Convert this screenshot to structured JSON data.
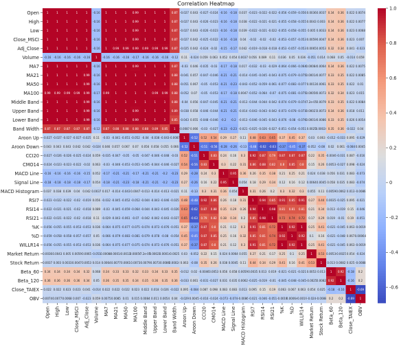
{
  "chart_data": {
    "type": "heatmap",
    "title": "Correlation Heatmap",
    "colormap": "coolwarm",
    "value_range": [
      -0.69,
      1
    ],
    "colorbar_ticks": [
      "-0.6",
      "-0.4",
      "-0.2",
      "0",
      "0.2",
      "0.4",
      "0.6",
      "0.8",
      "1.0"
    ],
    "colorbar_tick_values": [
      -0.6,
      -0.4,
      -0.2,
      0,
      0.2,
      0.4,
      0.6,
      0.8,
      1.0
    ],
    "labels": [
      "Open",
      "High",
      "Low",
      "Close_MSCI",
      "Adj_Close",
      "Volume",
      "MA7",
      "MA21",
      "MA50",
      "MA100",
      "Middle Band",
      "Upper Band",
      "Lower Band",
      "Band Width",
      "Aroon Up",
      "Aroon Down",
      "CCI20",
      "CMO14",
      "MACD Line",
      "Signal Line",
      "MACD Histogram",
      "RSI7",
      "RSI14",
      "RSI21",
      "%K",
      "%D",
      "WILLR14",
      "Market Return",
      "Stock Return",
      "Beta_60",
      "Beta_120",
      "Close_TAIEX",
      "OBV"
    ],
    "matrix": [
      [
        1,
        1,
        1,
        1,
        1,
        -0.16,
        1,
        1,
        1,
        0.99,
        1,
        1,
        1,
        0.87,
        -0.027,
        0.043,
        -0.027,
        -0.024,
        -0.16,
        -0.18,
        0.037,
        -0.023,
        -0.022,
        -0.022,
        -0.056,
        -0.059,
        -0.056,
        0.0036,
        0.0037,
        0.34,
        0.36,
        0.022,
        0.0074
      ],
      [
        1,
        1,
        1,
        1,
        1,
        -0.16,
        1,
        1,
        1,
        0.99,
        1,
        1,
        1,
        0.87,
        -0.027,
        0.043,
        -0.026,
        -0.023,
        -0.16,
        -0.18,
        0.038,
        -0.022,
        -0.021,
        -0.021,
        -0.055,
        -0.058,
        -0.055,
        0.0043,
        0.003,
        0.34,
        0.36,
        0.022,
        0.0077
      ],
      [
        1,
        1,
        1,
        1,
        1,
        -0.16,
        1,
        1,
        1,
        0.99,
        1,
        1,
        1,
        0.87,
        -0.027,
        0.043,
        -0.026,
        -0.023,
        -0.16,
        -0.18,
        0.039,
        -0.022,
        -0.021,
        -0.022,
        -0.055,
        -0.058,
        -0.055,
        0.005,
        0.0033,
        0.34,
        0.36,
        0.023,
        0.0068
      ],
      [
        1,
        1,
        1,
        1,
        1,
        -0.16,
        1,
        1,
        1,
        0.99,
        1,
        1,
        1,
        0.87,
        -0.027,
        0.042,
        -0.025,
        -0.022,
        -0.16,
        -0.18,
        0.04,
        -0.02,
        -0.02,
        -0.02,
        -0.053,
        -0.057,
        -0.053,
        0.0059,
        0.0047,
        0.34,
        0.36,
        0.023,
        0.007
      ],
      [
        1,
        1,
        1,
        1,
        1,
        -0.16,
        1,
        0.99,
        0.99,
        0.99,
        0.99,
        0.99,
        0.99,
        0.87,
        -0.025,
        0.042,
        -0.024,
        -0.02,
        -0.15,
        -0.17,
        0.042,
        -0.019,
        -0.018,
        -0.018,
        -0.053,
        -0.057,
        -0.053,
        0.0065,
        0.0053,
        0.32,
        0.34,
        0.041,
        -0.023
      ],
      [
        -0.16,
        -0.16,
        -0.16,
        -0.16,
        -0.16,
        1,
        -0.16,
        -0.16,
        -0.16,
        -0.17,
        -0.16,
        -0.16,
        -0.16,
        -0.12,
        0.11,
        -0.024,
        0.059,
        0.063,
        0.052,
        0.054,
        0.0037,
        0.056,
        0.089,
        0.11,
        0.036,
        0.05,
        0.036,
        -0.051,
        0.014,
        0.068,
        0.05,
        -0.014,
        0.059
      ],
      [
        1,
        1,
        1,
        1,
        1,
        -0.16,
        1,
        1,
        1,
        0.99,
        1,
        1,
        1,
        0.87,
        -0.03,
        0.046,
        -0.035,
        -0.03,
        -0.17,
        -0.18,
        0.017,
        -0.032,
        -0.03,
        -0.029,
        -0.064,
        -0.066,
        -0.064,
        0.00084,
        0.0064,
        0.34,
        0.36,
        0.022,
        0.0075
      ],
      [
        1,
        1,
        1,
        1,
        0.99,
        -0.16,
        1,
        1,
        1,
        1,
        1,
        1,
        1,
        0.88,
        -0.041,
        0.057,
        -0.047,
        -0.046,
        -0.21,
        -0.21,
        -0.014,
        -0.045,
        -0.045,
        -0.043,
        -0.075,
        -0.079,
        -0.075,
        0.00014,
        0.0077,
        0.33,
        0.35,
        0.022,
        0.0085
      ],
      [
        1,
        1,
        1,
        1,
        0.99,
        -0.16,
        1,
        1,
        1,
        1,
        1,
        1,
        1,
        0.88,
        -0.051,
        0.067,
        -0.05,
        -0.053,
        -0.21,
        -0.23,
        -0.043,
        -0.052,
        -0.059,
        -0.061,
        -0.077,
        -0.083,
        -0.077,
        0.0013,
        0.0061,
        0.33,
        0.35,
        0.022,
        0.01
      ],
      [
        0.99,
        0.99,
        0.99,
        0.99,
        0.99,
        -0.17,
        0.99,
        1,
        1,
        1,
        1,
        0.99,
        0.99,
        0.88,
        -0.052,
        0.07,
        -0.05,
        -0.053,
        -0.17,
        -0.18,
        0.0047,
        -0.052,
        -0.064,
        -0.07,
        -0.075,
        -0.081,
        -0.075,
        0.00056,
        0.0073,
        0.32,
        0.34,
        0.023,
        0.015
      ],
      [
        1,
        1,
        1,
        1,
        0.99,
        -0.16,
        1,
        1,
        1,
        1,
        1,
        1,
        1,
        0.88,
        -0.04,
        0.056,
        -0.047,
        -0.045,
        -0.21,
        -0.21,
        -0.013,
        -0.044,
        -0.044,
        -0.042,
        -0.074,
        -0.079,
        -0.074,
        7.2e-05,
        0.0079,
        0.33,
        0.35,
        0.022,
        0.0084
      ],
      [
        1,
        1,
        1,
        1,
        0.99,
        -0.16,
        1,
        1,
        1,
        0.99,
        1,
        1,
        1,
        0.89,
        -0.038,
        0.058,
        -0.046,
        -0.044,
        -0.21,
        -0.21,
        -0.014,
        -0.043,
        -0.043,
        -0.042,
        -0.073,
        -0.078,
        -0.073,
        0.00027,
        0.0073,
        0.34,
        0.36,
        0.018,
        0.011
      ],
      [
        1,
        1,
        1,
        1,
        0.99,
        -0.16,
        1,
        1,
        1,
        0.99,
        1,
        1,
        1,
        0.85,
        -0.043,
        0.055,
        -0.048,
        -0.046,
        -0.2,
        -0.2,
        -0.013,
        -0.046,
        -0.045,
        -0.043,
        -0.076,
        -0.08,
        -0.076,
        0.00014,
        0.0086,
        0.33,
        0.35,
        0.026,
        0.0054
      ],
      [
        0.87,
        0.87,
        0.87,
        0.87,
        0.87,
        -0.12,
        0.87,
        0.88,
        0.88,
        0.88,
        0.88,
        0.89,
        0.85,
        1,
        -0.0087,
        0.066,
        -0.03,
        -0.027,
        -0.23,
        -0.23,
        -0.021,
        -0.025,
        -0.026,
        -0.027,
        -0.051,
        -0.054,
        -0.051,
        0.0025,
        0.00024,
        0.35,
        0.36,
        -0.022,
        0.04
      ],
      [
        -0.027,
        -0.027,
        -0.027,
        -0.027,
        -0.025,
        0.11,
        -0.03,
        -0.041,
        -0.051,
        -0.052,
        -0.04,
        -0.038,
        -0.043,
        -0.0087,
        1,
        -0.52,
        0.52,
        0.54,
        0.29,
        0.27,
        0.11,
        0.48,
        0.63,
        0.65,
        0.37,
        0.45,
        0.37,
        0.03,
        0.063,
        -0.012,
        -0.033,
        0.095,
        -0.029
      ],
      [
        0.043,
        0.043,
        0.043,
        0.042,
        0.042,
        -0.024,
        0.046,
        0.057,
        0.067,
        0.07,
        0.056,
        0.058,
        0.055,
        0.066,
        -0.52,
        1,
        -0.51,
        -0.56,
        -0.28,
        -0.26,
        -0.13,
        -0.48,
        -0.62,
        -0.63,
        -0.37,
        -0.45,
        -0.37,
        -0.052,
        -0.08,
        0.02,
        0.061,
        -0.084,
        0.0045
      ],
      [
        -0.027,
        -0.026,
        -0.026,
        -0.025,
        -0.024,
        0.059,
        -0.035,
        -0.047,
        -0.05,
        -0.05,
        -0.047,
        -0.046,
        -0.048,
        -0.03,
        0.52,
        -0.51,
        1,
        0.83,
        0.24,
        0.16,
        0.3,
        0.92,
        0.87,
        0.79,
        0.87,
        0.87,
        0.87,
        0.22,
        0.35,
        -0.0046,
        -0.031,
        0.087,
        -0.016
      ],
      [
        -0.024,
        -0.023,
        -0.023,
        -0.022,
        -0.02,
        0.063,
        -0.03,
        -0.046,
        -0.053,
        -0.053,
        -0.045,
        -0.044,
        -0.046,
        -0.027,
        0.54,
        -0.56,
        0.83,
        1,
        0.3,
        0.22,
        0.31,
        0.86,
        0.88,
        0.82,
        0.8,
        0.85,
        0.8,
        0.15,
        0.26,
        0.0053,
        -0.027,
        0.098,
        -0.024
      ],
      [
        -0.16,
        -0.16,
        -0.16,
        -0.16,
        -0.15,
        0.052,
        -0.17,
        -0.21,
        -0.21,
        -0.17,
        -0.21,
        -0.21,
        -0.2,
        -0.23,
        0.29,
        -0.28,
        0.24,
        0.3,
        1,
        0.95,
        0.36,
        0.26,
        0.35,
        0.38,
        0.21,
        0.25,
        0.21,
        0.024,
        0.038,
        0.056,
        0.031,
        0.083,
        -0.073
      ],
      [
        -0.18,
        -0.18,
        -0.18,
        -0.18,
        -0.17,
        0.054,
        -0.18,
        -0.21,
        -0.23,
        -0.18,
        -0.21,
        -0.21,
        -0.2,
        -0.23,
        0.27,
        -0.26,
        0.16,
        0.22,
        0.95,
        1,
        0.054,
        0.18,
        0.29,
        0.34,
        0.12,
        0.16,
        0.12,
        0.0064,
        0.0045,
        0.058,
        0.035,
        0.083,
        -0.074
      ],
      [
        0.037,
        0.038,
        0.039,
        0.04,
        0.042,
        0.0037,
        0.017,
        -0.014,
        -0.043,
        0.0047,
        -0.013,
        -0.014,
        -0.013,
        -0.021,
        0.11,
        -0.13,
        0.3,
        0.31,
        0.36,
        0.054,
        1,
        0.31,
        0.26,
        0.2,
        0.3,
        0.32,
        0.3,
        0.055,
        0.11,
        0.0059,
        0.0062,
        0.013,
        -0.0086
      ],
      [
        -0.023,
        -0.022,
        -0.022,
        -0.02,
        -0.019,
        0.056,
        -0.032,
        -0.045,
        -0.052,
        -0.052,
        -0.044,
        -0.043,
        -0.046,
        -0.025,
        0.48,
        -0.48,
        0.92,
        0.86,
        0.26,
        0.18,
        0.31,
        1,
        0.94,
        0.85,
        0.91,
        0.85,
        0.91,
        0.27,
        0.44,
        0.0035,
        -0.025,
        0.095,
        -0.021
      ],
      [
        -0.022,
        -0.021,
        -0.021,
        -0.02,
        -0.018,
        0.089,
        -0.03,
        -0.045,
        -0.059,
        -0.064,
        -0.044,
        -0.043,
        -0.045,
        -0.026,
        0.63,
        -0.62,
        0.87,
        0.88,
        0.35,
        0.29,
        0.26,
        0.94,
        1,
        0.98,
        0.81,
        0.81,
        0.81,
        0.21,
        0.34,
        0.013,
        -0.019,
        0.15,
        -0.046
      ],
      [
        -0.022,
        -0.021,
        -0.022,
        -0.02,
        -0.018,
        0.11,
        -0.029,
        -0.043,
        -0.061,
        -0.07,
        -0.042,
        -0.042,
        -0.043,
        -0.027,
        0.65,
        -0.63,
        0.79,
        0.82,
        0.38,
        0.34,
        0.2,
        0.85,
        0.98,
        1,
        0.72,
        0.74,
        0.72,
        0.17,
        0.29,
        0.019,
        -0.01,
        0.19,
        -0.051
      ],
      [
        -0.056,
        -0.055,
        -0.055,
        -0.053,
        -0.053,
        0.036,
        -0.064,
        -0.075,
        -0.077,
        -0.075,
        -0.074,
        -0.073,
        -0.076,
        -0.051,
        0.37,
        -0.37,
        0.87,
        0.8,
        0.21,
        0.12,
        0.3,
        0.91,
        0.81,
        0.72,
        1,
        0.92,
        1,
        0.25,
        0.41,
        -0.021,
        -0.045,
        0.063,
        -0.0019
      ],
      [
        -0.059,
        -0.058,
        -0.058,
        -0.057,
        -0.057,
        0.05,
        -0.066,
        -0.079,
        -0.083,
        -0.081,
        -0.079,
        -0.078,
        -0.08,
        -0.054,
        0.45,
        -0.45,
        0.87,
        0.85,
        0.25,
        0.16,
        0.32,
        0.85,
        0.81,
        0.74,
        0.92,
        1,
        0.92,
        0.1,
        0.16,
        -0.021,
        -0.048,
        0.067,
        0.00064
      ],
      [
        -0.056,
        -0.055,
        -0.055,
        -0.053,
        -0.053,
        0.036,
        -0.064,
        -0.075,
        -0.077,
        -0.075,
        -0.074,
        -0.073,
        -0.076,
        -0.051,
        0.37,
        -0.37,
        0.87,
        0.8,
        0.21,
        0.12,
        0.3,
        0.91,
        0.81,
        0.72,
        1,
        0.92,
        1,
        0.25,
        0.41,
        -0.021,
        -0.045,
        0.063,
        -0.0019
      ],
      [
        0.0036,
        0.0043,
        0.005,
        0.0059,
        0.0065,
        -0.051,
        0.00084,
        0.00014,
        0.0013,
        0.00056,
        7.2e-05,
        0.00027,
        0.00014,
        0.0025,
        0.03,
        -0.052,
        0.22,
        0.15,
        0.024,
        0.0064,
        0.055,
        0.27,
        0.21,
        0.17,
        0.25,
        0.1,
        0.25,
        1,
        0.53,
        0.0053,
        -0.0025,
        0.054,
        -0.024
      ],
      [
        0.0037,
        0.003,
        0.0033,
        0.0047,
        0.0053,
        0.014,
        0.0064,
        0.0077,
        0.0061,
        0.0073,
        0.0079,
        0.0073,
        0.0086,
        0.00024,
        0.063,
        -0.08,
        0.35,
        0.26,
        0.038,
        0.0045,
        0.11,
        0.44,
        0.34,
        0.29,
        0.41,
        0.16,
        0.41,
        0.53,
        1,
        0.013,
        0.0082,
        0.025,
        -0.0088
      ],
      [
        0.34,
        0.34,
        0.34,
        0.34,
        0.32,
        0.068,
        0.34,
        0.33,
        0.33,
        0.32,
        0.33,
        0.34,
        0.33,
        0.35,
        -0.012,
        0.02,
        -0.0046,
        0.0053,
        0.056,
        0.058,
        0.0059,
        0.0035,
        0.013,
        0.019,
        -0.021,
        -0.021,
        -0.021,
        0.0053,
        0.013,
        1,
        0.92,
        -0.18,
        0.2
      ],
      [
        0.36,
        0.36,
        0.36,
        0.36,
        0.34,
        0.05,
        0.36,
        0.35,
        0.35,
        0.34,
        0.35,
        0.36,
        0.35,
        0.36,
        -0.033,
        0.061,
        -0.031,
        -0.027,
        0.031,
        0.035,
        0.0062,
        -0.025,
        -0.019,
        -0.01,
        -0.045,
        -0.048,
        -0.045,
        -0.0025,
        0.0082,
        0.92,
        1,
        -0.16,
        0.2
      ],
      [
        0.022,
        0.022,
        0.023,
        0.023,
        0.041,
        -0.014,
        0.022,
        0.022,
        0.022,
        0.023,
        0.022,
        0.018,
        0.026,
        -0.022,
        0.095,
        -0.084,
        0.087,
        0.098,
        0.083,
        0.083,
        0.013,
        0.095,
        0.15,
        0.19,
        0.063,
        0.067,
        0.063,
        0.054,
        0.025,
        -0.18,
        -0.16,
        1,
        -0.69
      ],
      [
        0.0074,
        0.0077,
        0.0068,
        0.007,
        -0.023,
        0.059,
        0.0075,
        0.0085,
        0.01,
        0.015,
        0.0084,
        0.011,
        0.0054,
        0.04,
        -0.029,
        0.0045,
        -0.016,
        -0.024,
        -0.073,
        -0.074,
        -0.0086,
        -0.021,
        -0.046,
        -0.051,
        -0.0019,
        0.00064,
        -0.0019,
        -0.024,
        -0.0088,
        0.2,
        0.2,
        -0.69,
        1
      ]
    ],
    "annotations": true,
    "legend": "colorbar-right"
  }
}
